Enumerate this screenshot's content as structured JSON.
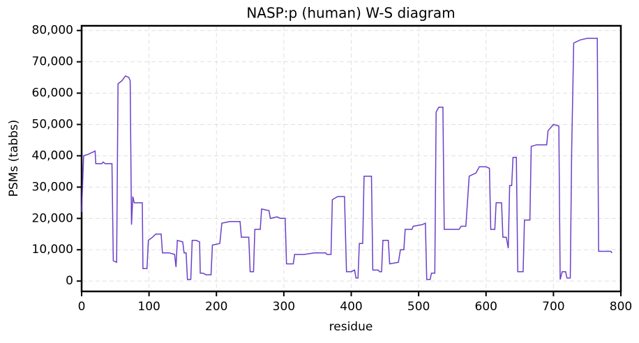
{
  "chart_data": {
    "type": "line",
    "title": "NASP:p (human) W-S diagram",
    "x_label": "residue",
    "y_label": "PSMs (tabbs)",
    "color": "#6a3fc8",
    "grid": true,
    "xlim": [
      0,
      800
    ],
    "ylim": [
      -3300,
      81500
    ],
    "xticks": [
      0,
      100,
      200,
      300,
      400,
      500,
      600,
      700,
      800
    ],
    "yticks": [
      0,
      {
        "value": 10000,
        "label": "10,000"
      },
      {
        "value": 20000,
        "label": "20,000"
      },
      {
        "value": 30000,
        "label": "30,000"
      },
      {
        "value": 40000,
        "label": "40,000"
      },
      {
        "value": 50000,
        "label": "50,000"
      },
      {
        "value": 60000,
        "label": "60,000"
      },
      {
        "value": 70000,
        "label": "70,000"
      },
      {
        "value": 80000,
        "label": "80,000"
      }
    ],
    "x": [
      0,
      3,
      10,
      20,
      21,
      30,
      32,
      35,
      45,
      47,
      52,
      54,
      60,
      65,
      70,
      72,
      74,
      76,
      78,
      90,
      91,
      97,
      99,
      105,
      110,
      118,
      120,
      130,
      138,
      140,
      142,
      150,
      152,
      155,
      157,
      162,
      164,
      170,
      175,
      176,
      180,
      185,
      192,
      194,
      205,
      208,
      220,
      235,
      237,
      248,
      250,
      255,
      257,
      265,
      267,
      278,
      280,
      290,
      295,
      302,
      304,
      314,
      316,
      330,
      345,
      362,
      364,
      370,
      372,
      380,
      390,
      393,
      400,
      405,
      407,
      410,
      412,
      417,
      419,
      430,
      432,
      440,
      442,
      445,
      447,
      455,
      457,
      470,
      473,
      478,
      480,
      490,
      492,
      505,
      510,
      512,
      517,
      519,
      524,
      526,
      530,
      536,
      538,
      550,
      560,
      563,
      570,
      575,
      585,
      590,
      600,
      605,
      607,
      613,
      615,
      623,
      625,
      630,
      633,
      635,
      638,
      640,
      645,
      647,
      655,
      657,
      665,
      667,
      675,
      690,
      692,
      700,
      708,
      710,
      713,
      718,
      720,
      725,
      727,
      730,
      740,
      750,
      765,
      767,
      775,
      785,
      787
    ],
    "values": [
      22000,
      40000,
      40500,
      41500,
      37500,
      37500,
      38000,
      37500,
      37500,
      6500,
      6000,
      63000,
      64000,
      65500,
      65000,
      64000,
      18000,
      27000,
      25000,
      25000,
      4000,
      4000,
      13000,
      14000,
      15000,
      15000,
      9000,
      9000,
      8500,
      4500,
      13000,
      12500,
      9000,
      9000,
      500,
      500,
      13000,
      13000,
      12500,
      2500,
      2500,
      2000,
      2000,
      11500,
      12000,
      18500,
      19000,
      19000,
      14000,
      14000,
      3000,
      3000,
      16500,
      16500,
      23000,
      22500,
      20000,
      20500,
      20000,
      20000,
      5500,
      5500,
      8500,
      8500,
      9000,
      9000,
      8500,
      8500,
      26000,
      27000,
      27000,
      3000,
      3000,
      3500,
      1000,
      1000,
      12000,
      12000,
      33500,
      33500,
      3500,
      3500,
      3000,
      3000,
      13000,
      13000,
      5500,
      6000,
      10000,
      10000,
      16500,
      16500,
      17500,
      18000,
      18500,
      500,
      500,
      2500,
      2500,
      54000,
      55500,
      55500,
      16500,
      16500,
      16500,
      17500,
      17500,
      33500,
      34500,
      36500,
      36500,
      36000,
      16500,
      16500,
      25000,
      25000,
      14000,
      14000,
      10500,
      30500,
      30500,
      39500,
      39500,
      3000,
      3000,
      19500,
      19500,
      43000,
      43500,
      43500,
      48000,
      50000,
      49500,
      500,
      3000,
      3000,
      1000,
      1000,
      42000,
      76000,
      77000,
      77500,
      77500,
      9500,
      9500,
      9500,
      9000
    ]
  }
}
